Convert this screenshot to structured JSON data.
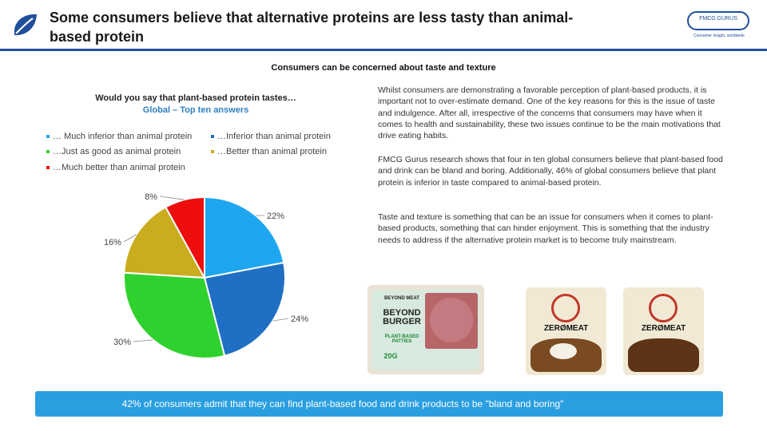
{
  "header": {
    "title": "Some consumers believe that alternative proteins are less tasty than animal-based protein",
    "logo_text": "FMCG GURUS",
    "logo_tagline": "Consumer insight, worldwide"
  },
  "subtitle": "Consumers can be concerned about taste and texture",
  "chart_data": {
    "type": "pie",
    "title": "Would you say that plant-based protein tastes…",
    "subtitle": "Global – Top ten answers",
    "series": [
      {
        "name": "… Much inferior than animal protein",
        "value": 22,
        "label": "22%",
        "color": "#1ea7f0"
      },
      {
        "name": "…Inferior than animal protein",
        "value": 24,
        "label": "24%",
        "color": "#1f6fc4"
      },
      {
        "name": "…Just as good as animal protein",
        "value": 30,
        "label": "30%",
        "color": "#2fd12f"
      },
      {
        "name": "…Better than animal protein",
        "value": 16,
        "label": "16%",
        "color": "#c9ad1e"
      },
      {
        "name": "…Much better than animal protein",
        "value": 8,
        "label": "8%",
        "color": "#ee0d0d"
      }
    ],
    "legend_placement": "top"
  },
  "text_blocks": [
    "Whilst consumers are demonstrating a favorable perception of plant-based products, it is important not to over-estimate demand. One of the key reasons for this is the issue of taste and indulgence. After all, irrespective of the concerns that consumers may have when it comes to health and sustainability, these two issues continue to be the main motivations that drive eating habits.",
    "FMCG Gurus research shows that four in ten global consumers believe that plant-based food and drink can be bland and boring. Additionally, 46% of global consumers believe that plant protein is inferior in taste compared to animal-based protein.",
    "Taste and texture is something that can be an issue for consumers when it comes to plant-based products, something that can hinder enjoyment. This is something that the industry needs to address if the alternative protein market is to become truly mainstream."
  ],
  "products": [
    {
      "brand": "BEYOND MEAT",
      "name": "BEYOND BURGER",
      "sub": "PLANT-BASED PATTIES",
      "protein": "20G"
    },
    {
      "brand": "ZERØMEAT",
      "name": "ZERØMEAT"
    },
    {
      "brand": "ZERØMEAT",
      "name": "ZERØMEAT"
    }
  ],
  "banner": "42% of consumers admit that they can find plant-based food and drink products to be \"bland and boring\""
}
